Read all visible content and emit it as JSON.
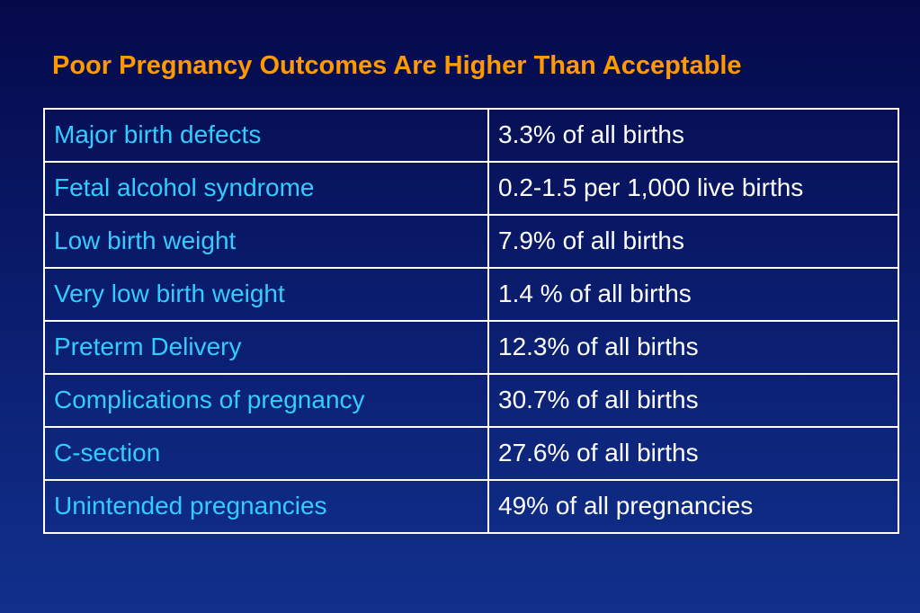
{
  "title": "Poor Pregnancy Outcomes Are Higher Than Acceptable",
  "rows": [
    {
      "outcome": "Major birth defects",
      "rate": "3.3% of all births"
    },
    {
      "outcome": "Fetal alcohol syndrome",
      "rate": "0.2-1.5 per 1,000 live births"
    },
    {
      "outcome": "Low birth weight",
      "rate": "7.9% of all births"
    },
    {
      "outcome": "Very low birth weight",
      "rate": "1.4 % of all births"
    },
    {
      "outcome": "Preterm Delivery",
      "rate": "12.3% of all births"
    },
    {
      "outcome": "Complications of pregnancy",
      "rate": "30.7% of all births"
    },
    {
      "outcome": "C-section",
      "rate": "27.6% of all births"
    },
    {
      "outcome": "Unintended pregnancies",
      "rate": "49% of all pregnancies"
    }
  ],
  "colors": {
    "title": "#ff9900",
    "outcome_text": "#33ccff",
    "rate_text": "#ffffff",
    "border": "#ffffff",
    "background_top": "#05094a",
    "background_bottom": "#11308c"
  }
}
